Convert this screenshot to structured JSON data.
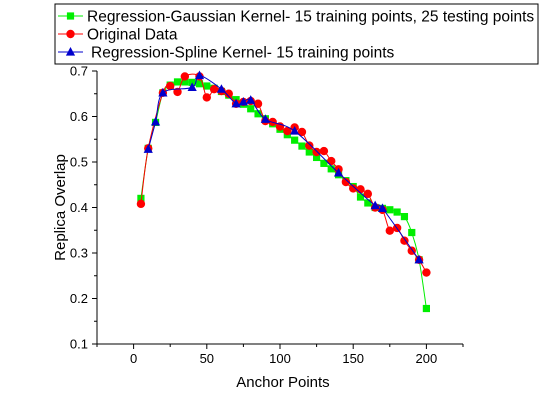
{
  "chart_data": {
    "type": "line",
    "xlabel": "Anchor Points",
    "ylabel": "Replica Overlap",
    "xlim": [
      -25,
      225
    ],
    "ylim": [
      0.1,
      0.7
    ],
    "x_ticks": [
      0,
      50,
      100,
      150,
      200
    ],
    "y_ticks": [
      0.1,
      0.2,
      0.3,
      0.4,
      0.5,
      0.6,
      0.7
    ],
    "x_tick_labels": [
      "0",
      "50",
      "100",
      "150",
      "200"
    ],
    "y_tick_labels": [
      "0.1",
      "0.2",
      "0.3",
      "0.4",
      "0.5",
      "0.6",
      "0.7"
    ],
    "legend_position": "top",
    "series": [
      {
        "name": "Regression-Gaussian Kernel- 15 training points, 25 testing points",
        "color": "#00ee00",
        "marker": "square",
        "x": [
          5,
          10,
          15,
          20,
          25,
          30,
          35,
          40,
          45,
          50,
          55,
          60,
          65,
          70,
          75,
          80,
          85,
          90,
          95,
          100,
          105,
          110,
          115,
          120,
          125,
          130,
          135,
          140,
          145,
          150,
          155,
          160,
          165,
          170,
          175,
          180,
          185,
          190,
          195,
          200
        ],
        "y": [
          0.42,
          0.53,
          0.587,
          0.652,
          0.669,
          0.676,
          0.676,
          0.675,
          0.672,
          0.667,
          0.662,
          0.655,
          0.647,
          0.637,
          0.627,
          0.617,
          0.606,
          0.595,
          0.584,
          0.572,
          0.56,
          0.548,
          0.535,
          0.522,
          0.51,
          0.497,
          0.485,
          0.472,
          0.459,
          0.446,
          0.423,
          0.41,
          0.4,
          0.398,
          0.395,
          0.39,
          0.38,
          0.345,
          0.285,
          0.178
        ]
      },
      {
        "name": "Original Data",
        "color": "#ff0000",
        "marker": "circle",
        "x": [
          5,
          10,
          20,
          25,
          30,
          35,
          45,
          50,
          55,
          60,
          65,
          70,
          75,
          80,
          85,
          90,
          95,
          100,
          105,
          110,
          115,
          120,
          125,
          130,
          135,
          140,
          145,
          150,
          155,
          160,
          165,
          170,
          175,
          180,
          185,
          190,
          195,
          200
        ],
        "y": [
          0.408,
          0.53,
          0.652,
          0.667,
          0.654,
          0.688,
          0.688,
          0.642,
          0.66,
          0.656,
          0.65,
          0.628,
          0.632,
          0.634,
          0.628,
          0.59,
          0.588,
          0.578,
          0.568,
          0.576,
          0.566,
          0.536,
          0.522,
          0.524,
          0.502,
          0.484,
          0.456,
          0.442,
          0.44,
          0.43,
          0.4,
          0.395,
          0.349,
          0.355,
          0.327,
          0.305,
          0.285,
          0.257
        ]
      },
      {
        "name": "Regression-Spline Kernel- 15 training points",
        "color": "#0000cc",
        "marker": "triangle",
        "x": [
          10,
          15,
          20,
          40,
          45,
          60,
          70,
          75,
          80,
          90,
          110,
          140,
          165,
          170,
          195
        ],
        "y": [
          0.528,
          0.588,
          0.652,
          0.664,
          0.69,
          0.66,
          0.628,
          0.632,
          0.636,
          0.594,
          0.568,
          0.476,
          0.404,
          0.398,
          0.285
        ]
      }
    ]
  }
}
